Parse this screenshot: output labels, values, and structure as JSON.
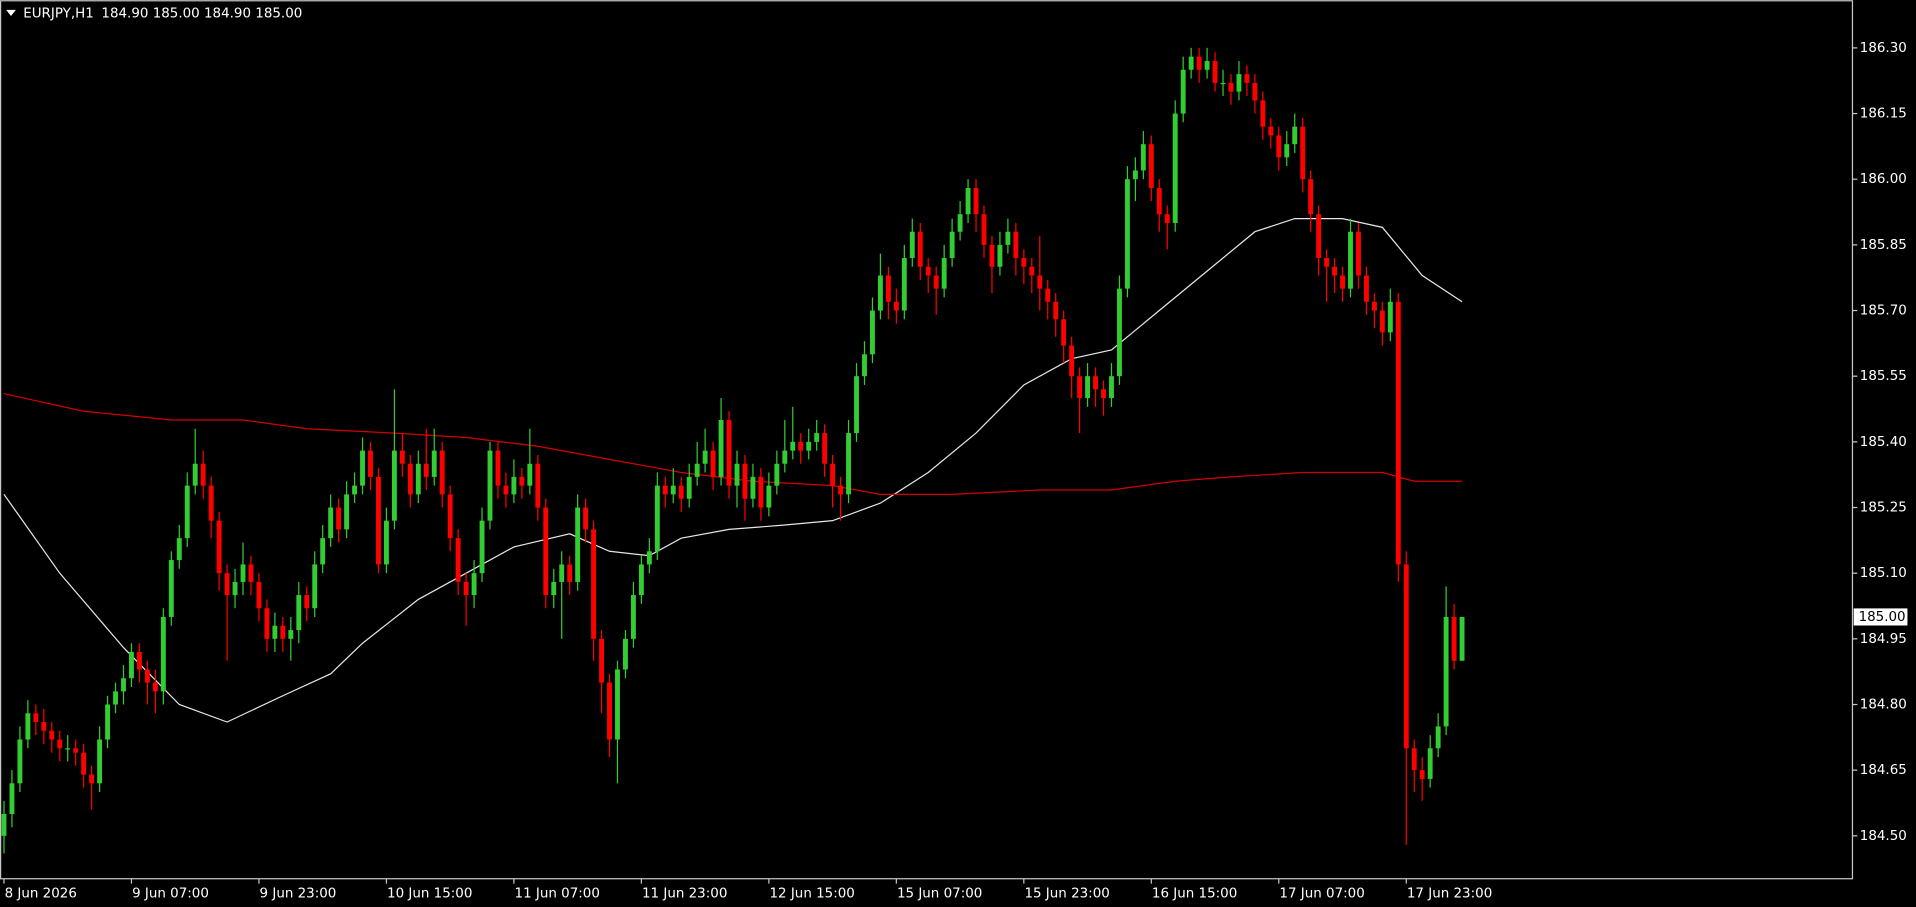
{
  "header": {
    "symbol": "EURJPY,H1",
    "quote": "184.90 185.00 184.90 185.00"
  },
  "chart_data": {
    "type": "candlestick",
    "up_color": "#32cd32",
    "down_color": "#ff0000",
    "xlim": [
      -0.5,
      232
    ],
    "ylim": [
      184.402,
      186.409
    ],
    "xticks": [
      {
        "value": 0,
        "label": "8 Jun 2026"
      },
      {
        "value": 16,
        "label": "9 Jun 07:00"
      },
      {
        "value": 32,
        "label": "9 Jun 23:00"
      },
      {
        "value": 48,
        "label": "10 Jun 15:00"
      },
      {
        "value": 64,
        "label": "11 Jun 07:00"
      },
      {
        "value": 80,
        "label": "11 Jun 23:00"
      },
      {
        "value": 96,
        "label": "12 Jun 15:00"
      },
      {
        "value": 112,
        "label": "15 Jun 07:00"
      },
      {
        "value": 128,
        "label": "15 Jun 23:00"
      },
      {
        "value": 144,
        "label": "16 Jun 15:00"
      },
      {
        "value": 160,
        "label": "17 Jun 07:00"
      },
      {
        "value": 176,
        "label": "17 Jun 23:00"
      }
    ],
    "yticks": [
      {
        "value": 184.5,
        "label": "184.50"
      },
      184.65,
      {
        "value": 184.8,
        "label": "184.80"
      },
      184.95,
      {
        "value": 185.1,
        "label": "185.10"
      },
      185.25,
      {
        "value": 185.4,
        "label": "185.40"
      },
      185.55,
      {
        "value": 185.7,
        "label": "185.70"
      },
      185.85,
      {
        "value": 186,
        "label": "186.00"
      },
      186.15,
      {
        "value": 186.3,
        "label": "186.30"
      }
    ],
    "price": {
      "value": 185,
      "label": "185.00"
    },
    "ohlc": [
      [
        184.5,
        184.58,
        184.46,
        184.55
      ],
      [
        184.55,
        184.65,
        184.52,
        184.62
      ],
      [
        184.62,
        184.75,
        184.6,
        184.72
      ],
      [
        184.72,
        184.81,
        184.7,
        184.78
      ],
      [
        184.78,
        184.8,
        184.73,
        184.76
      ],
      [
        184.76,
        184.79,
        184.71,
        184.74
      ],
      [
        184.74,
        184.76,
        184.69,
        184.72
      ],
      [
        184.72,
        184.74,
        184.67,
        184.7
      ],
      [
        184.7,
        184.73,
        184.67,
        184.7
      ],
      [
        184.7,
        184.72,
        184.66,
        184.69
      ],
      [
        184.69,
        184.71,
        184.61,
        184.64
      ],
      [
        184.64,
        184.66,
        184.56,
        184.62
      ],
      [
        184.62,
        184.75,
        184.6,
        184.72
      ],
      [
        184.72,
        184.82,
        184.7,
        184.8
      ],
      [
        184.8,
        184.85,
        184.78,
        184.83
      ],
      [
        184.83,
        184.89,
        184.8,
        184.86
      ],
      [
        184.86,
        184.94,
        184.84,
        184.92
      ],
      [
        184.92,
        184.94,
        184.85,
        184.88
      ],
      [
        184.88,
        184.9,
        184.8,
        184.85
      ],
      [
        184.85,
        184.88,
        184.78,
        184.83
      ],
      [
        184.83,
        185.02,
        184.8,
        185.0
      ],
      [
        185.0,
        185.15,
        184.98,
        185.13
      ],
      [
        185.13,
        185.21,
        185.11,
        185.18
      ],
      [
        185.18,
        185.33,
        185.16,
        185.3
      ],
      [
        185.3,
        185.43,
        185.28,
        185.35
      ],
      [
        185.35,
        185.38,
        185.27,
        185.3
      ],
      [
        185.3,
        185.32,
        185.18,
        185.22
      ],
      [
        185.22,
        185.24,
        185.06,
        185.1
      ],
      [
        185.1,
        185.12,
        184.9,
        185.05
      ],
      [
        185.05,
        185.11,
        185.02,
        185.08
      ],
      [
        185.08,
        185.17,
        185.05,
        185.12
      ],
      [
        185.12,
        185.14,
        185.05,
        185.08
      ],
      [
        185.08,
        185.1,
        184.99,
        185.02
      ],
      [
        185.02,
        185.04,
        184.92,
        184.95
      ],
      [
        184.95,
        185.01,
        184.92,
        184.98
      ],
      [
        184.98,
        185.0,
        184.92,
        184.95
      ],
      [
        184.95,
        185.0,
        184.9,
        184.97
      ],
      [
        184.97,
        185.08,
        184.94,
        185.05
      ],
      [
        185.05,
        185.07,
        184.99,
        185.02
      ],
      [
        185.02,
        185.15,
        185.0,
        185.12
      ],
      [
        185.12,
        185.21,
        185.1,
        185.18
      ],
      [
        185.18,
        185.28,
        185.16,
        185.25
      ],
      [
        185.25,
        185.27,
        185.17,
        185.2
      ],
      [
        185.2,
        185.31,
        185.18,
        185.28
      ],
      [
        185.28,
        185.33,
        185.26,
        185.3
      ],
      [
        185.3,
        185.41,
        185.28,
        185.38
      ],
      [
        185.38,
        185.4,
        185.29,
        185.32
      ],
      [
        185.32,
        185.34,
        185.1,
        185.12
      ],
      [
        185.12,
        185.25,
        185.1,
        185.22
      ],
      [
        185.22,
        185.52,
        185.2,
        185.38
      ],
      [
        185.38,
        185.42,
        185.32,
        185.35
      ],
      [
        185.35,
        185.37,
        185.25,
        185.28
      ],
      [
        185.28,
        185.38,
        185.26,
        185.35
      ],
      [
        185.35,
        185.43,
        185.29,
        185.32
      ],
      [
        185.32,
        185.43,
        185.3,
        185.38
      ],
      [
        185.38,
        185.4,
        185.25,
        185.28
      ],
      [
        185.28,
        185.3,
        185.15,
        185.18
      ],
      [
        185.18,
        185.2,
        185.05,
        185.08
      ],
      [
        185.08,
        185.1,
        184.98,
        185.05
      ],
      [
        185.05,
        185.13,
        185.02,
        185.1
      ],
      [
        185.1,
        185.25,
        185.08,
        185.22
      ],
      [
        185.22,
        185.4,
        185.2,
        185.38
      ],
      [
        185.38,
        185.4,
        185.27,
        185.3
      ],
      [
        185.3,
        185.33,
        185.25,
        185.28
      ],
      [
        185.28,
        185.36,
        185.26,
        185.32
      ],
      [
        185.32,
        185.34,
        185.27,
        185.3
      ],
      [
        185.3,
        185.43,
        185.28,
        185.35
      ],
      [
        185.35,
        185.37,
        185.22,
        185.25
      ],
      [
        185.25,
        185.27,
        185.02,
        185.05
      ],
      [
        185.05,
        185.11,
        185.02,
        185.08
      ],
      [
        185.08,
        185.15,
        184.95,
        185.12
      ],
      [
        185.12,
        185.14,
        185.05,
        185.08
      ],
      [
        185.08,
        185.28,
        185.06,
        185.25
      ],
      [
        185.25,
        185.27,
        185.17,
        185.2
      ],
      [
        185.2,
        185.22,
        184.9,
        184.95
      ],
      [
        184.95,
        184.97,
        184.78,
        184.85
      ],
      [
        184.85,
        184.87,
        184.68,
        184.72
      ],
      [
        184.72,
        184.9,
        184.62,
        184.88
      ],
      [
        184.88,
        184.97,
        184.86,
        184.95
      ],
      [
        184.95,
        185.08,
        184.93,
        185.05
      ],
      [
        185.05,
        185.14,
        185.03,
        185.12
      ],
      [
        185.12,
        185.18,
        185.1,
        185.15
      ],
      [
        185.15,
        185.33,
        185.13,
        185.3
      ],
      [
        185.3,
        185.32,
        185.25,
        185.28
      ],
      [
        185.28,
        185.34,
        185.26,
        185.3
      ],
      [
        185.3,
        185.32,
        185.24,
        185.27
      ],
      [
        185.27,
        185.35,
        185.25,
        185.32
      ],
      [
        185.32,
        185.4,
        185.3,
        185.35
      ],
      [
        185.35,
        185.43,
        185.33,
        185.38
      ],
      [
        185.38,
        185.4,
        185.29,
        185.32
      ],
      [
        185.32,
        185.5,
        185.3,
        185.45
      ],
      [
        185.45,
        185.47,
        185.27,
        185.3
      ],
      [
        185.3,
        185.38,
        185.25,
        185.35
      ],
      [
        185.35,
        185.37,
        185.22,
        185.27
      ],
      [
        185.27,
        185.35,
        185.25,
        185.32
      ],
      [
        185.32,
        185.34,
        185.22,
        185.25
      ],
      [
        185.25,
        185.33,
        185.23,
        185.3
      ],
      [
        185.3,
        185.38,
        185.28,
        185.35
      ],
      [
        185.35,
        185.45,
        185.33,
        185.38
      ],
      [
        185.38,
        185.48,
        185.36,
        185.4
      ],
      [
        185.4,
        185.42,
        185.35,
        185.38
      ],
      [
        185.38,
        185.43,
        185.36,
        185.4
      ],
      [
        185.4,
        185.45,
        185.38,
        185.42
      ],
      [
        185.42,
        185.44,
        185.32,
        185.35
      ],
      [
        185.35,
        185.37,
        185.25,
        185.3
      ],
      [
        185.3,
        185.32,
        185.22,
        185.28
      ],
      [
        185.28,
        185.45,
        185.26,
        185.42
      ],
      [
        185.42,
        185.58,
        185.4,
        185.55
      ],
      [
        185.55,
        185.63,
        185.53,
        185.6
      ],
      [
        185.6,
        185.73,
        185.58,
        185.7
      ],
      [
        185.7,
        185.83,
        185.68,
        185.78
      ],
      [
        185.78,
        185.8,
        185.68,
        185.72
      ],
      [
        185.72,
        185.75,
        185.67,
        185.7
      ],
      [
        185.7,
        185.85,
        185.68,
        185.82
      ],
      [
        185.82,
        185.91,
        185.8,
        185.88
      ],
      [
        185.88,
        185.9,
        185.77,
        185.8
      ],
      [
        185.8,
        185.82,
        185.74,
        185.78
      ],
      [
        185.78,
        185.8,
        185.69,
        185.75
      ],
      [
        185.75,
        185.85,
        185.73,
        185.82
      ],
      [
        185.82,
        185.91,
        185.8,
        185.88
      ],
      [
        185.88,
        185.95,
        185.86,
        185.92
      ],
      [
        185.92,
        186.0,
        185.9,
        185.98
      ],
      [
        185.98,
        186.0,
        185.88,
        185.92
      ],
      [
        185.92,
        185.94,
        185.82,
        185.85
      ],
      [
        185.85,
        185.87,
        185.74,
        185.8
      ],
      [
        185.8,
        185.88,
        185.78,
        185.85
      ],
      [
        185.85,
        185.91,
        185.83,
        185.88
      ],
      [
        185.88,
        185.9,
        185.78,
        185.82
      ],
      [
        185.82,
        185.84,
        185.76,
        185.8
      ],
      [
        185.8,
        185.82,
        185.74,
        185.78
      ],
      [
        185.78,
        185.87,
        185.7,
        185.75
      ],
      [
        185.75,
        185.77,
        185.68,
        185.72
      ],
      [
        185.72,
        185.74,
        185.64,
        185.68
      ],
      [
        185.68,
        185.7,
        185.58,
        185.62
      ],
      [
        185.62,
        185.64,
        185.5,
        185.55
      ],
      [
        185.55,
        185.57,
        185.42,
        185.5
      ],
      [
        185.5,
        185.58,
        185.48,
        185.55
      ],
      [
        185.55,
        185.57,
        185.48,
        185.52
      ],
      [
        185.52,
        185.54,
        185.46,
        185.5
      ],
      [
        185.5,
        185.58,
        185.48,
        185.55
      ],
      [
        185.55,
        185.78,
        185.53,
        185.75
      ],
      [
        185.75,
        186.03,
        185.73,
        186.0
      ],
      [
        186.0,
        186.05,
        185.95,
        186.02
      ],
      [
        186.02,
        186.11,
        186.0,
        186.08
      ],
      [
        186.08,
        186.1,
        185.95,
        185.98
      ],
      [
        185.98,
        186.0,
        185.88,
        185.92
      ],
      [
        185.92,
        185.94,
        185.84,
        185.9
      ],
      [
        185.9,
        186.18,
        185.88,
        186.15
      ],
      [
        186.15,
        186.28,
        186.13,
        186.25
      ],
      [
        186.25,
        186.3,
        186.23,
        186.28
      ],
      [
        186.28,
        186.3,
        186.22,
        186.25
      ],
      [
        186.25,
        186.3,
        186.23,
        186.27
      ],
      [
        186.27,
        186.29,
        186.2,
        186.22
      ],
      [
        186.22,
        186.25,
        186.19,
        186.22
      ],
      [
        186.22,
        186.24,
        186.17,
        186.2
      ],
      [
        186.2,
        186.27,
        186.18,
        186.24
      ],
      [
        186.24,
        186.26,
        186.19,
        186.22
      ],
      [
        186.22,
        186.24,
        186.15,
        186.18
      ],
      [
        186.18,
        186.2,
        186.09,
        186.12
      ],
      [
        186.12,
        186.14,
        186.07,
        186.1
      ],
      [
        186.1,
        186.12,
        186.02,
        186.05
      ],
      [
        186.05,
        186.11,
        186.03,
        186.08
      ],
      [
        186.08,
        186.15,
        186.06,
        186.12
      ],
      [
        186.12,
        186.14,
        185.97,
        186.0
      ],
      [
        186.0,
        186.02,
        185.88,
        185.92
      ],
      [
        185.92,
        185.94,
        185.78,
        185.82
      ],
      [
        185.82,
        185.84,
        185.72,
        185.8
      ],
      [
        185.8,
        185.82,
        185.74,
        185.78
      ],
      [
        185.78,
        185.8,
        185.72,
        185.75
      ],
      [
        185.75,
        185.91,
        185.73,
        185.88
      ],
      [
        185.88,
        185.9,
        185.75,
        185.78
      ],
      [
        185.78,
        185.8,
        185.69,
        185.72
      ],
      [
        185.72,
        185.74,
        185.66,
        185.7
      ],
      [
        185.7,
        185.72,
        185.62,
        185.65
      ],
      [
        185.65,
        185.75,
        185.63,
        185.72
      ],
      [
        185.72,
        185.74,
        185.08,
        185.12
      ],
      [
        185.12,
        185.15,
        184.48,
        184.7
      ],
      [
        184.7,
        184.72,
        184.6,
        184.65
      ],
      [
        184.65,
        184.68,
        184.58,
        184.63
      ],
      [
        184.63,
        184.73,
        184.61,
        184.7
      ],
      [
        184.7,
        184.78,
        184.68,
        184.75
      ],
      [
        184.75,
        185.07,
        184.73,
        185.0
      ],
      [
        185.0,
        185.03,
        184.88,
        184.9
      ],
      [
        184.9,
        185.0,
        184.9,
        185.0
      ]
    ],
    "lines": [
      {
        "color": "#e6e6e6",
        "x": [
          0,
          7,
          15,
          22,
          28,
          35,
          41,
          45,
          52,
          58,
          64,
          71,
          76,
          81,
          85,
          91,
          98,
          104,
          110,
          116,
          122,
          128,
          134,
          139,
          145,
          151,
          157,
          162,
          168,
          173,
          178,
          183
        ],
        "values": [
          185.28,
          185.1,
          184.93,
          184.8,
          184.76,
          184.82,
          184.87,
          184.94,
          185.04,
          185.1,
          185.16,
          185.19,
          185.15,
          185.14,
          185.18,
          185.2,
          185.21,
          185.22,
          185.26,
          185.33,
          185.42,
          185.53,
          185.59,
          185.61,
          185.7,
          185.79,
          185.88,
          185.91,
          185.91,
          185.89,
          185.78,
          185.72
        ]
      },
      {
        "color": "#d40000",
        "x": [
          0,
          10,
          21,
          30,
          38,
          49,
          58,
          67,
          76,
          85,
          94,
          104,
          110,
          119,
          130,
          139,
          147,
          154,
          163,
          173,
          177,
          183
        ],
        "values": [
          185.51,
          185.47,
          185.45,
          185.45,
          185.43,
          185.42,
          185.41,
          185.39,
          185.36,
          185.33,
          185.31,
          185.3,
          185.28,
          185.28,
          185.29,
          185.29,
          185.31,
          185.32,
          185.33,
          185.33,
          185.31,
          185.31
        ]
      }
    ]
  }
}
